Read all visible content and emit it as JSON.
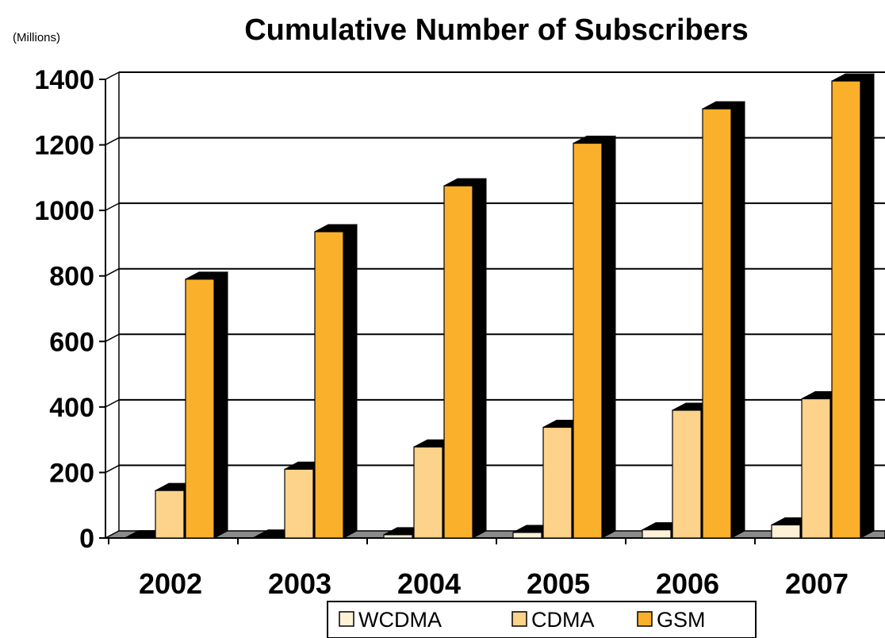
{
  "chart_data": {
    "type": "bar",
    "title": "Cumulative Number of Subscribers",
    "ylabel": "(Millions)",
    "xlabel": "",
    "categories": [
      "2002",
      "2003",
      "2004",
      "2005",
      "2006",
      "2007"
    ],
    "ylim": [
      0,
      1400
    ],
    "yticks": [
      0,
      200,
      400,
      600,
      800,
      1000,
      1200,
      1400
    ],
    "grid": true,
    "legend_position": "bottom",
    "series": [
      {
        "name": "WCDMA",
        "color": "#fdf1d8",
        "values": [
          1,
          3,
          10,
          17,
          25,
          40
        ]
      },
      {
        "name": "CDMA",
        "color": "#fdd28a",
        "values": [
          145,
          210,
          278,
          338,
          390,
          425
        ]
      },
      {
        "name": "GSM",
        "color": "#fbb02c",
        "values": [
          790,
          935,
          1075,
          1205,
          1310,
          1395
        ]
      }
    ]
  }
}
